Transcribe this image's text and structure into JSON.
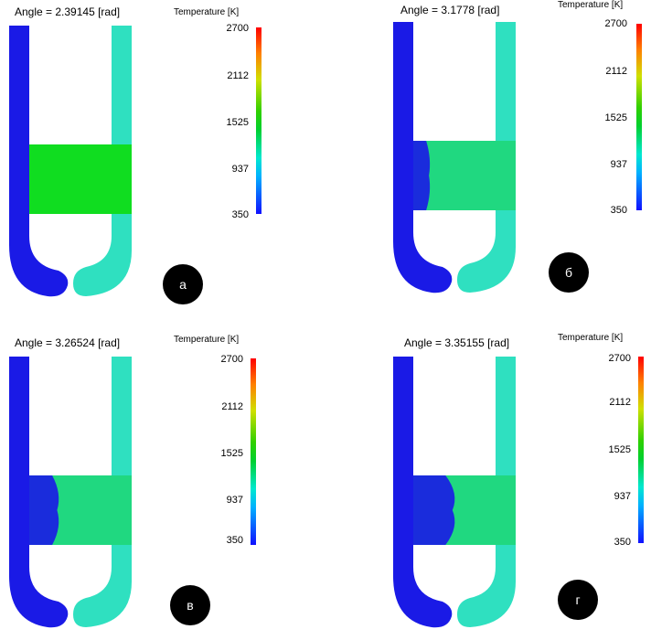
{
  "colorbar": {
    "title": "Temperature [K]",
    "ticks": [
      "2700",
      "2112",
      "1525",
      "937",
      "350"
    ],
    "min": 350,
    "max": 2700
  },
  "colors": {
    "cold": "#1a1ae6",
    "exhaust": "#2fe0c0",
    "chamber": "#10dd20",
    "mixed": "#20d880"
  },
  "panels": [
    {
      "id": "a",
      "angle": "Angle = 2.39145 [rad]",
      "label": "а",
      "front": 0.0
    },
    {
      "id": "b",
      "angle": "Angle = 3.1778 [rad]",
      "label": "б",
      "front": 0.18
    },
    {
      "id": "c",
      "angle": "Angle = 3.26524 [rad]",
      "label": "в",
      "front": 0.32
    },
    {
      "id": "d",
      "angle": "Angle = 3.35155 [rad]",
      "label": "г",
      "front": 0.45
    }
  ]
}
